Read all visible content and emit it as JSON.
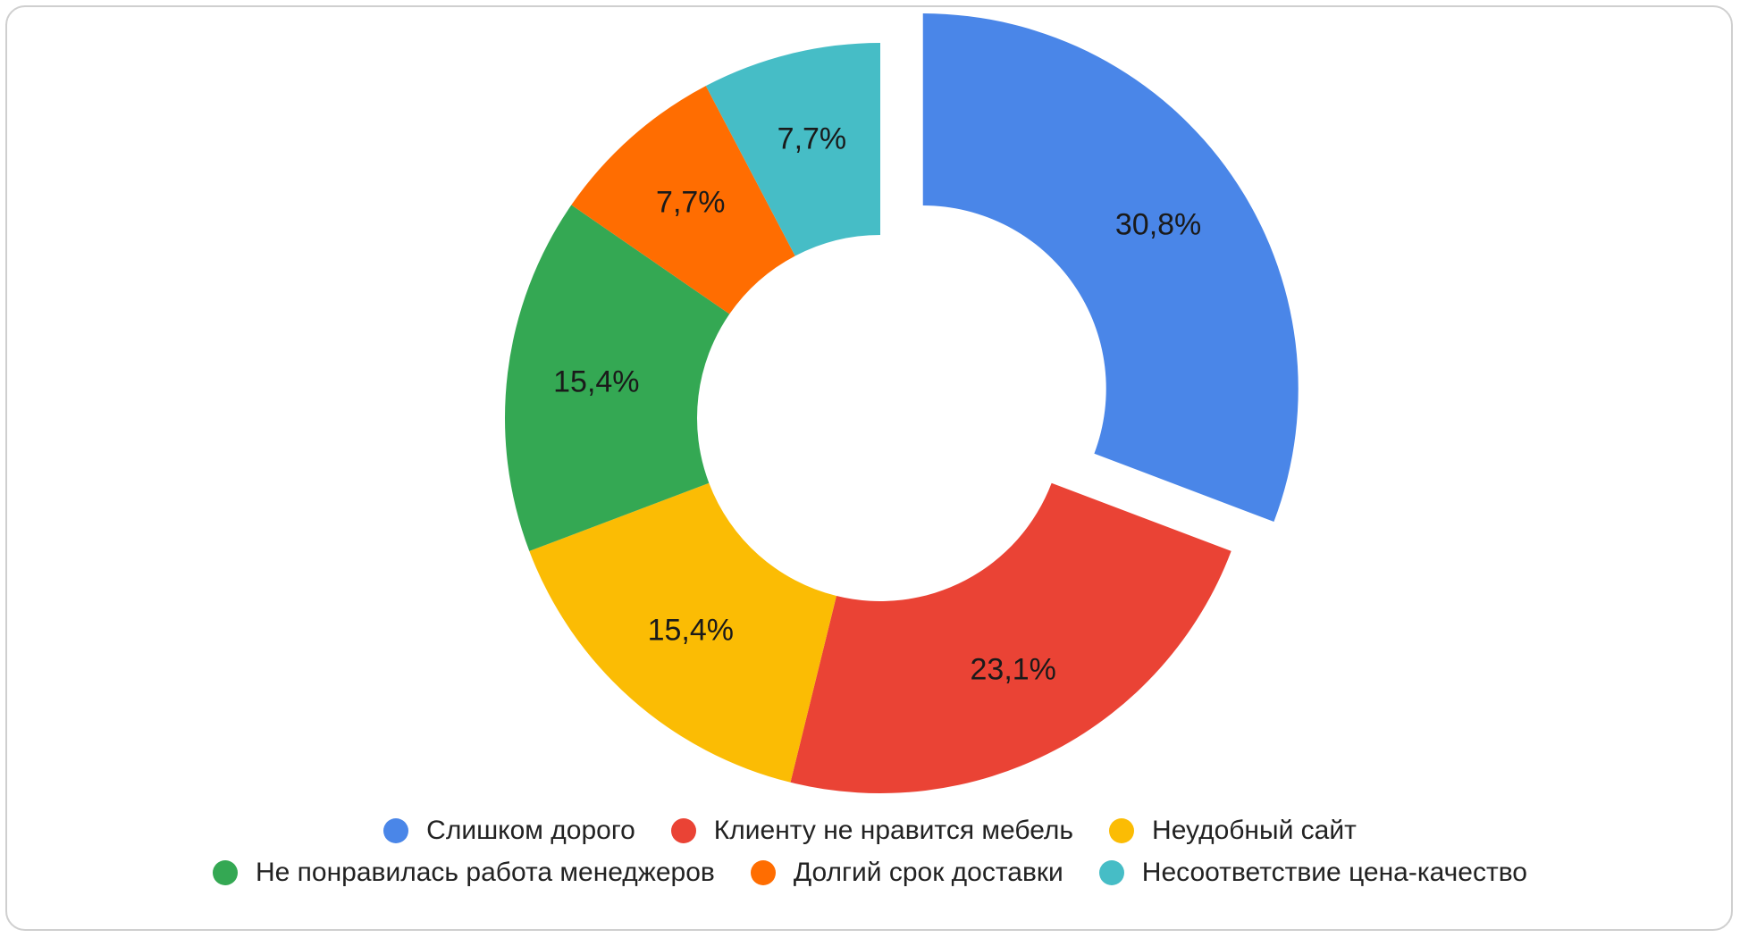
{
  "chart_data": {
    "type": "pie",
    "style": "donut",
    "title": "",
    "categories": [
      "Слишком дорого",
      "Клиенту не нравится мебель",
      "Неудобный сайт",
      "Не понравилась работа менеджеров",
      "Долгий срок доставки",
      "Несоответствие цена-качество"
    ],
    "values": [
      30.8,
      23.1,
      15.4,
      15.4,
      7.7,
      7.7
    ],
    "labels": [
      "30,8%",
      "23,1%",
      "15,4%",
      "15,4%",
      "7,7%",
      "7,7%"
    ],
    "colors": [
      "#4A86E8",
      "#EA4335",
      "#FBBC04",
      "#34A853",
      "#FF6D01",
      "#46BDC6"
    ],
    "exploded": [
      true,
      false,
      false,
      false,
      false,
      false
    ],
    "legend_position": "bottom"
  }
}
